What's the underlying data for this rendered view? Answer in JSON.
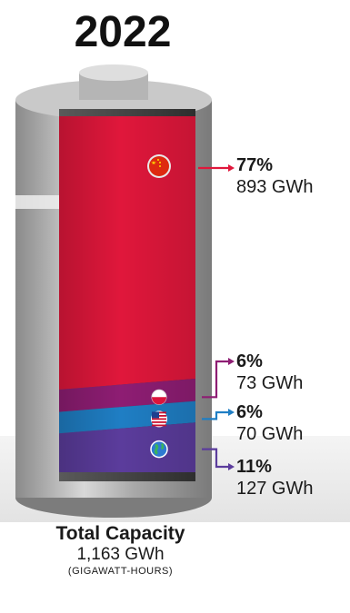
{
  "chart_data": {
    "type": "stacked-bar",
    "title": "2022",
    "unit": "GWh",
    "series": [
      {
        "name": "China",
        "percent": "77%",
        "value": 893,
        "value_label": "893 GWh",
        "color": "#e0173b",
        "icon": "china-flag-icon"
      },
      {
        "name": "Poland",
        "percent": "6%",
        "value": 73,
        "value_label": "73 GWh",
        "color": "#8e1d73",
        "icon": "poland-flag-icon"
      },
      {
        "name": "U.S.",
        "percent": "6%",
        "value": 70,
        "value_label": "70 GWh",
        "color": "#1f7ec4",
        "icon": "us-flag-icon"
      },
      {
        "name": "Other",
        "percent": "11%",
        "value": 127,
        "value_label": "127 GWh",
        "color": "#5b3c9c",
        "icon": "globe-icon"
      }
    ],
    "total": {
      "title": "Total Capacity",
      "value": 1163,
      "value_label": "1,163 GWh",
      "unit_note": "(GIGAWATT-HOURS)"
    }
  }
}
